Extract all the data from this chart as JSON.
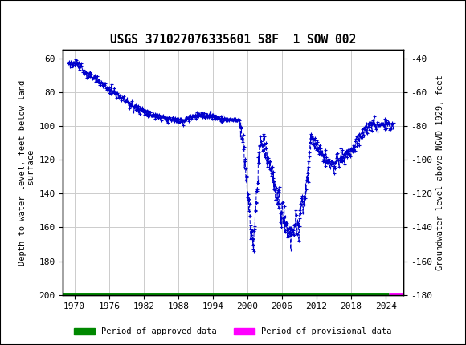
{
  "title": "USGS 371027076335601 58F  1 SOW 002",
  "header_color": "#1a6b3c",
  "ylabel_left": "Depth to water level, feet below land\n  surface",
  "ylabel_right": "Groundwater level above NGVD 1929, feet",
  "ylim_left": [
    200,
    55
  ],
  "ylim_right": [
    -180,
    -35
  ],
  "yticks_left": [
    60,
    80,
    100,
    120,
    140,
    160,
    180,
    200
  ],
  "yticks_right": [
    -40,
    -60,
    -80,
    -100,
    -120,
    -140,
    -160,
    -180
  ],
  "xticks": [
    1970,
    1976,
    1982,
    1988,
    1994,
    2000,
    2006,
    2012,
    2018,
    2024
  ],
  "xlim": [
    1968.0,
    2027.0
  ],
  "line_color": "#0000cc",
  "approved_color": "#008800",
  "provisional_color": "#ff00ff",
  "background_color": "#ffffff",
  "grid_color": "#cccccc"
}
